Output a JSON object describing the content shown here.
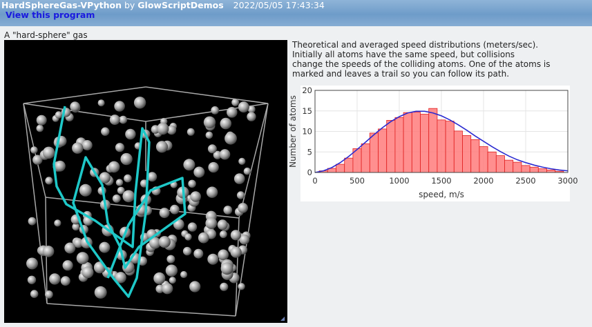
{
  "header": {
    "program_name": "HardSphereGas-VPython",
    "by_label": "by",
    "author": "GlowScriptDemos",
    "datetime": "2022/05/05 17:43:34",
    "view_link_label": "View this program"
  },
  "scene": {
    "caption": "A \"hard-sphere\" gas",
    "resize_icon": "resize-corner-icon"
  },
  "description": {
    "lines": [
      "Theoretical and averaged speed distributions (meters/sec).",
      "Initially all atoms have the same speed, but collisions",
      "change the speeds of the colliding atoms. One of the atoms is",
      "marked and leaves a trail so you can follow its path."
    ]
  },
  "colors": {
    "header_bg": "#7aa5cf",
    "link": "#1a1adf",
    "bar_fill": "#ff7b7b",
    "bar_stroke": "#e02020",
    "theory_curve": "#2a2ad0",
    "trail": "#1ec8c8",
    "box_edges": "#a8a8a8"
  },
  "chart_data": {
    "type": "bar",
    "xlabel": "speed, m/s",
    "ylabel": "Number of atoms",
    "xlim": [
      0,
      3000
    ],
    "ylim": [
      0,
      20
    ],
    "xticks": [
      0,
      500,
      1000,
      1500,
      2000,
      2500,
      3000
    ],
    "yticks": [
      0,
      5,
      10,
      15,
      20
    ],
    "grid": true,
    "bin_width": 100,
    "bins": [
      {
        "x": 100,
        "y": 0.4
      },
      {
        "x": 200,
        "y": 1.0
      },
      {
        "x": 300,
        "y": 2.0
      },
      {
        "x": 400,
        "y": 3.5
      },
      {
        "x": 500,
        "y": 5.8
      },
      {
        "x": 600,
        "y": 7.0
      },
      {
        "x": 700,
        "y": 9.6
      },
      {
        "x": 800,
        "y": 10.6
      },
      {
        "x": 900,
        "y": 12.7
      },
      {
        "x": 1000,
        "y": 13.4
      },
      {
        "x": 1100,
        "y": 14.6
      },
      {
        "x": 1200,
        "y": 14.7
      },
      {
        "x": 1300,
        "y": 14.2
      },
      {
        "x": 1400,
        "y": 15.6
      },
      {
        "x": 1500,
        "y": 12.8
      },
      {
        "x": 1600,
        "y": 12.5
      },
      {
        "x": 1700,
        "y": 10.1
      },
      {
        "x": 1800,
        "y": 9.0
      },
      {
        "x": 1900,
        "y": 8.0
      },
      {
        "x": 2000,
        "y": 6.3
      },
      {
        "x": 2100,
        "y": 5.0
      },
      {
        "x": 2200,
        "y": 4.1
      },
      {
        "x": 2300,
        "y": 3.0
      },
      {
        "x": 2400,
        "y": 2.5
      },
      {
        "x": 2500,
        "y": 1.7
      },
      {
        "x": 2600,
        "y": 1.3
      },
      {
        "x": 2700,
        "y": 0.9
      },
      {
        "x": 2800,
        "y": 0.6
      },
      {
        "x": 2900,
        "y": 0.3
      }
    ],
    "theory_curve": {
      "x": [
        0,
        100,
        200,
        300,
        400,
        500,
        600,
        700,
        800,
        900,
        1000,
        1100,
        1200,
        1300,
        1400,
        1500,
        1600,
        1700,
        1800,
        1900,
        2000,
        2100,
        2200,
        2300,
        2400,
        2500,
        2600,
        2700,
        2800,
        2900,
        3000
      ],
      "y": [
        0,
        0.4,
        1.2,
        2.4,
        3.9,
        5.6,
        7.4,
        9.2,
        10.9,
        12.4,
        13.6,
        14.5,
        14.9,
        14.9,
        14.5,
        13.8,
        12.8,
        11.6,
        10.3,
        8.9,
        7.6,
        6.3,
        5.1,
        4.0,
        3.1,
        2.4,
        1.8,
        1.3,
        0.9,
        0.6,
        0.4
      ]
    }
  }
}
